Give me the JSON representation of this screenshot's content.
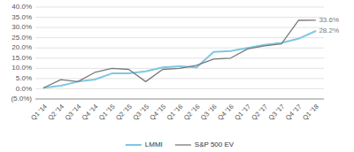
{
  "chart_data": {
    "type": "line",
    "categories": [
      "Q1 '14",
      "Q2 '14",
      "Q3 '14",
      "Q4 '14",
      "Q1 '15",
      "Q2 '15",
      "Q3 '15",
      "Q4 '15",
      "Q1 '16",
      "Q2 '16",
      "Q3 '16",
      "Q4 '16",
      "Q1 '17",
      "Q2 '17",
      "Q3 '17",
      "Q4 '17",
      "Q1 '18"
    ],
    "series": [
      {
        "name": "LMMI",
        "color": "#7ec8e3",
        "values": [
          0.5,
          1.5,
          3.5,
          4.5,
          7.5,
          7.5,
          8.5,
          10.5,
          11.0,
          10.5,
          18.0,
          18.5,
          20.0,
          21.5,
          22.5,
          24.5,
          28.2
        ]
      },
      {
        "name": "S&P 500 EV",
        "color": "#7a7a7a",
        "values": [
          0.5,
          4.5,
          3.5,
          8.0,
          10.0,
          9.5,
          3.5,
          9.5,
          10.0,
          11.5,
          14.5,
          15.0,
          19.5,
          21.0,
          22.0,
          33.5,
          33.6
        ]
      }
    ],
    "ylim": [
      -5.0,
      40.0
    ],
    "yticks": [
      {
        "value": -5.0,
        "label": "(5.0%)"
      },
      {
        "value": 0.0,
        "label": "0.0%"
      },
      {
        "value": 5.0,
        "label": "5.0%"
      },
      {
        "value": 10.0,
        "label": "10.0%"
      },
      {
        "value": 15.0,
        "label": "15.0%"
      },
      {
        "value": 20.0,
        "label": "20.0%"
      },
      {
        "value": 25.0,
        "label": "25.0%"
      },
      {
        "value": 30.0,
        "label": "30.0%"
      },
      {
        "value": 35.0,
        "label": "35.0%"
      },
      {
        "value": 40.0,
        "label": "40.0%"
      }
    ],
    "annotations": [
      {
        "text": "33.6%",
        "x": "Q1 '18",
        "y": 33.6,
        "color": "#7a7a7a"
      },
      {
        "text": "28.2%",
        "x": "Q1 '18",
        "y": 28.2,
        "color": "#7a7a7a"
      }
    ],
    "grid": true,
    "legend": "bottom"
  }
}
